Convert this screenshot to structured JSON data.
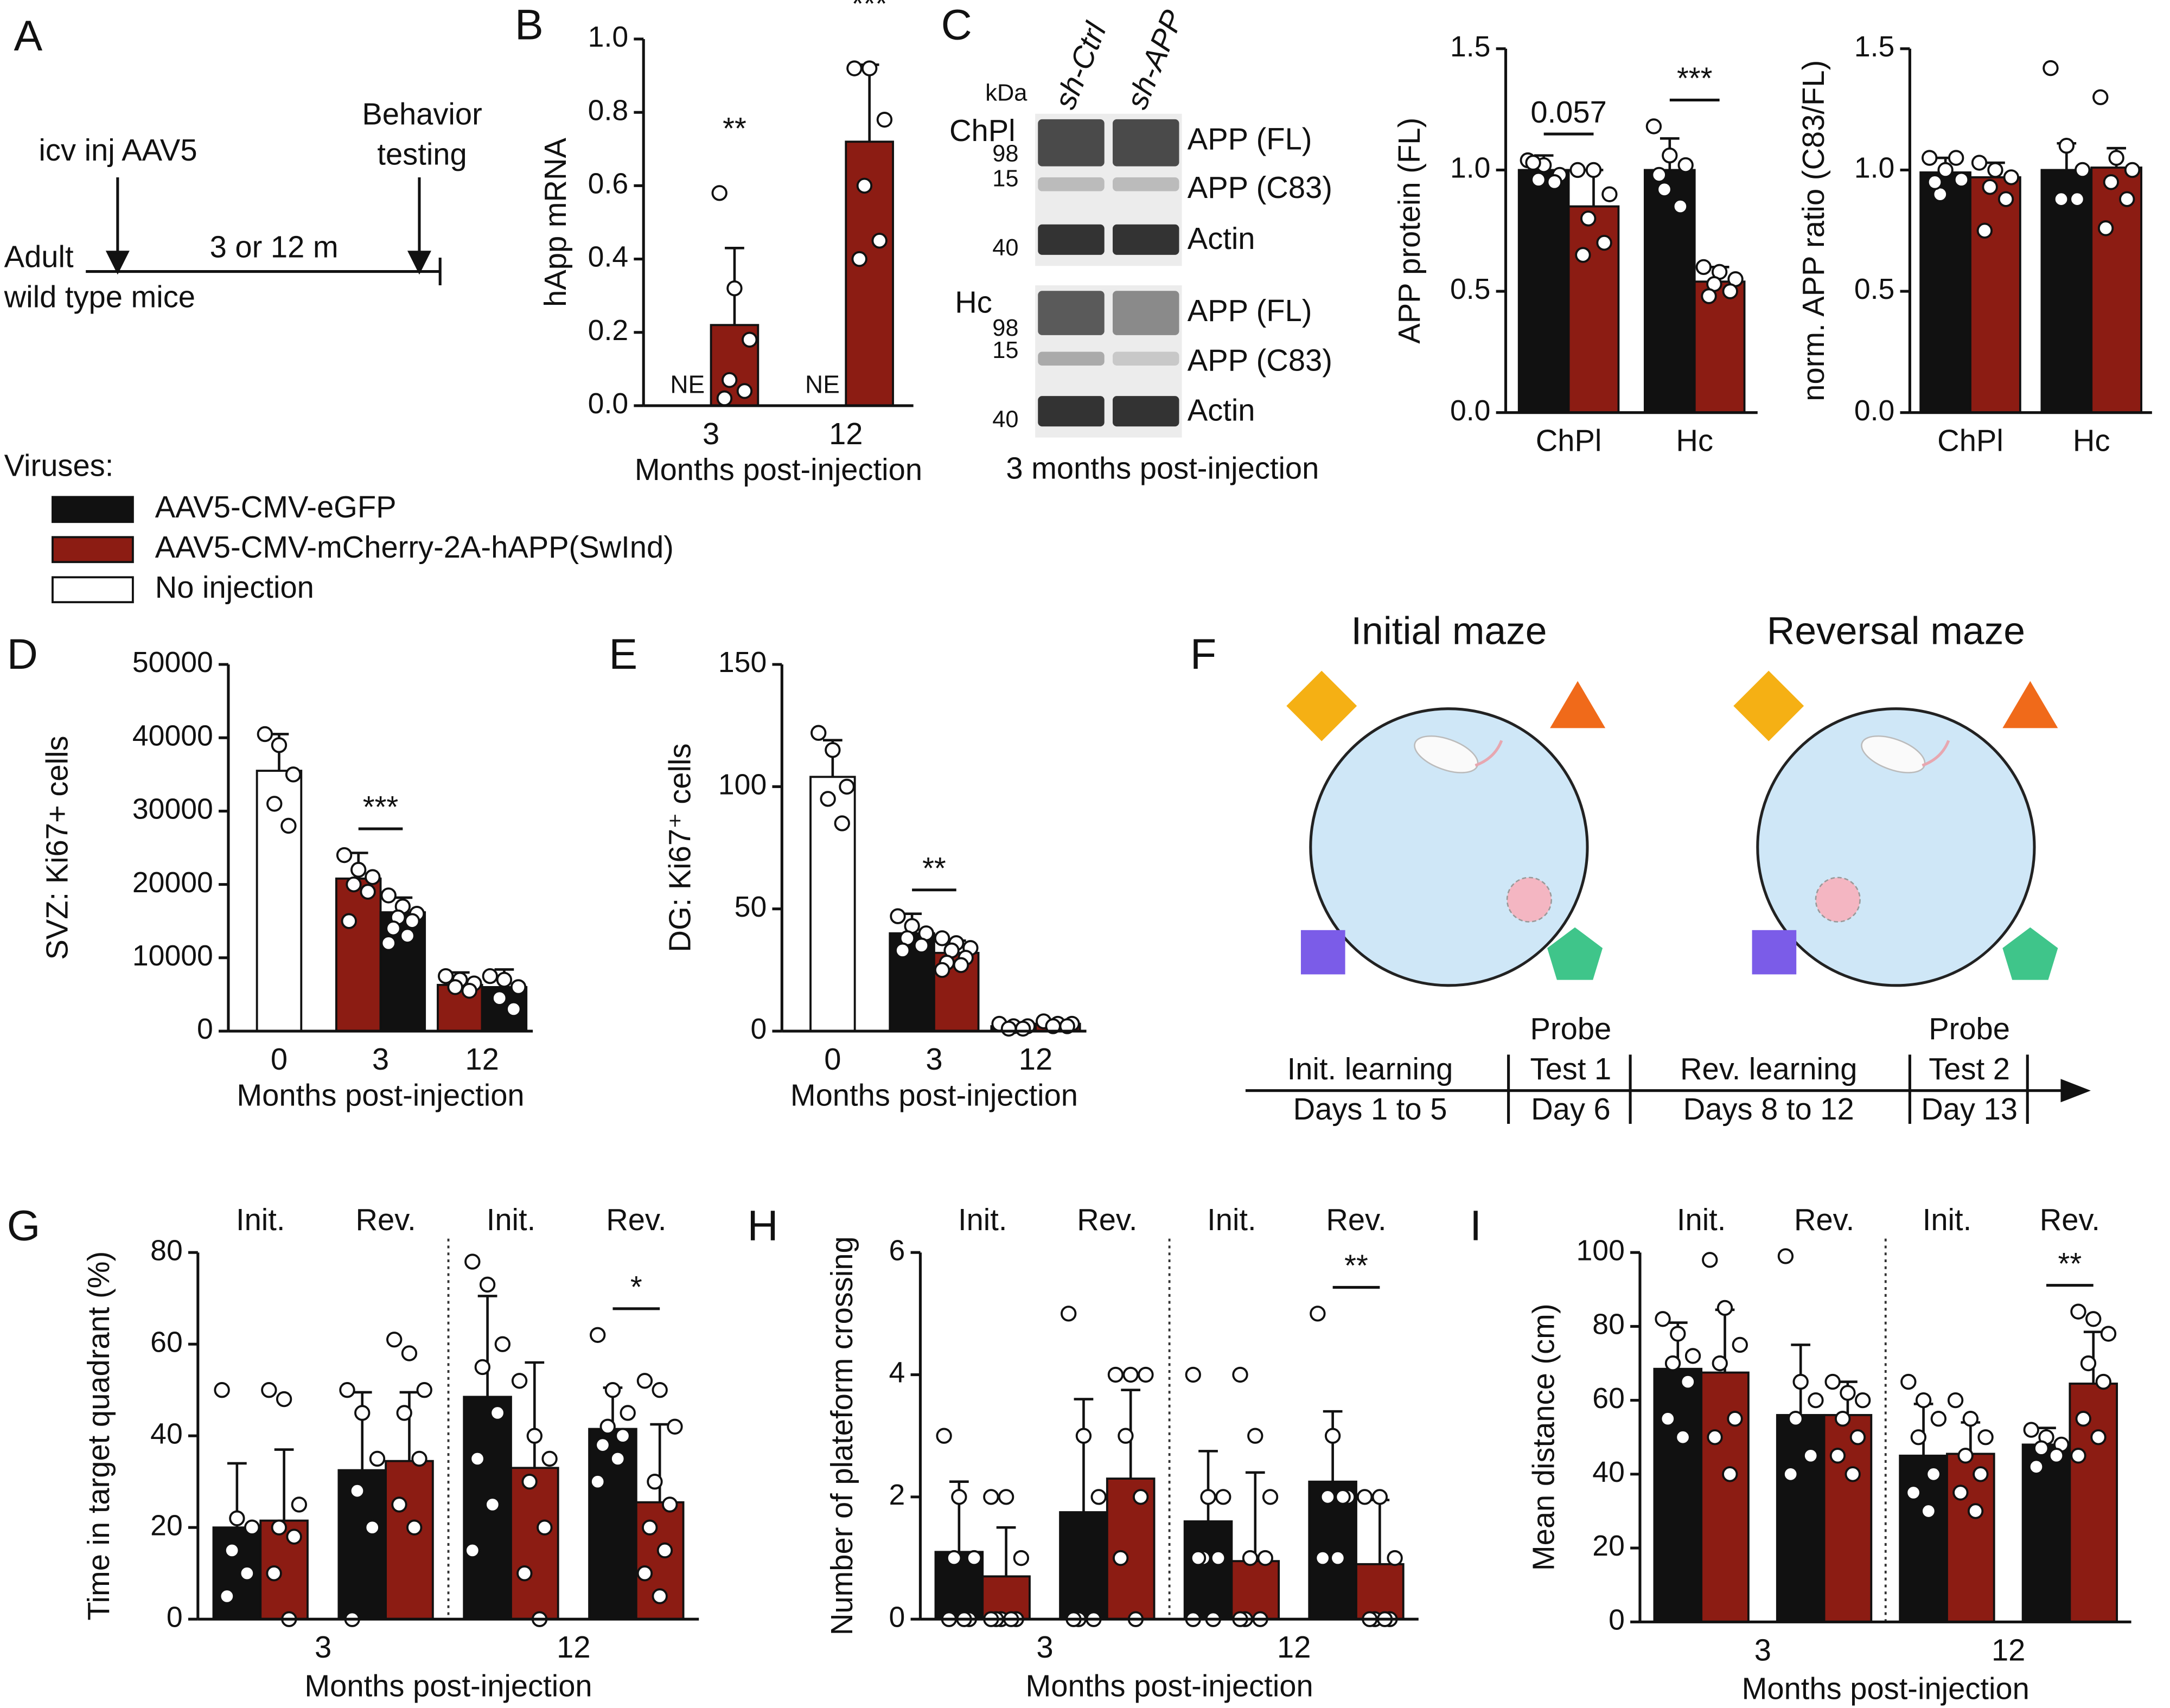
{
  "panel_labels": [
    "A",
    "B",
    "C",
    "D",
    "E",
    "F",
    "G",
    "H",
    "I"
  ],
  "schematic": {
    "injection": "icv inj AAV5",
    "behavior": [
      "Behavior",
      "testing"
    ],
    "interval": "3 or 12 m",
    "subject": [
      "Adult",
      "wild type mice"
    ]
  },
  "legend": {
    "title": "Viruses:",
    "items": [
      {
        "name": "AAV5-CMV-eGFP",
        "color": "#111111"
      },
      {
        "name": "AAV5-CMV-mCherry-2A-hAPP(SwInd)",
        "color": "#8c1c13"
      },
      {
        "name": "No injection",
        "color": "#ffffff"
      }
    ]
  },
  "blot": {
    "kda": "kDa",
    "lanes": [
      "sh-Ctrl",
      "sh-APP"
    ],
    "tissues": [
      "ChPl",
      "Hc"
    ],
    "markers": [
      [
        98,
        15,
        40
      ],
      [
        98,
        15,
        40
      ]
    ],
    "bands": [
      [
        "APP (FL)",
        "APP (C83)",
        "Actin"
      ],
      [
        "APP (FL)",
        "APP (C83)",
        "Actin"
      ]
    ],
    "caption": "3 months post-injection"
  },
  "maze": {
    "titles": [
      "Initial maze",
      "Reversal maze"
    ],
    "timeline": [
      [
        "Init. learning",
        "Days 1 to 5"
      ],
      [
        "Probe",
        "Test 1",
        "Day 6"
      ],
      [
        "Rev. learning",
        "Days 8 to 12"
      ],
      [
        "Probe",
        "Test 2",
        "Day 13"
      ]
    ]
  },
  "chart_data": [
    {
      "type": "bar",
      "ylabel": "hApp mRNA",
      "xlabel": "Months post-injection",
      "categories": [
        "3",
        "12"
      ],
      "ylim": [
        0,
        1
      ],
      "yticks": [
        {
          "value": 0,
          "label": "0.0"
        },
        {
          "value": 0.2,
          "label": "0.2"
        },
        {
          "value": 0.4,
          "label": "0.4"
        },
        {
          "value": 0.6,
          "label": "0.6"
        },
        {
          "value": 0.8,
          "label": "0.8"
        },
        {
          "value": 1,
          "label": "1.0"
        }
      ],
      "series": [
        {
          "color": "#111111",
          "values": [
            null,
            null
          ],
          "missing_label": "NE"
        },
        {
          "color": "#8c1c13",
          "values": [
            0.22,
            0.72
          ],
          "errors": [
            0.21,
            0.21
          ],
          "points": [
            [
              0.58,
              0.32,
              0.18,
              0.07,
              0.04,
              0.02
            ],
            [
              0.92,
              0.92,
              0.78,
              0.6,
              0.45,
              0.4
            ]
          ]
        }
      ],
      "annotations": [
        {
          "text": "**",
          "category": 0,
          "series": 1
        },
        {
          "text": "***",
          "category": 1,
          "series": 1
        }
      ]
    },
    {
      "type": "bar",
      "ylabel": "APP protein (FL)",
      "categories": [
        "ChPl",
        "Hc"
      ],
      "ylim": [
        0,
        1.5
      ],
      "yticks": [
        {
          "value": 0,
          "label": "0.0"
        },
        {
          "value": 0.5,
          "label": "0.5"
        },
        {
          "value": 1,
          "label": "1.0"
        },
        {
          "value": 1.5,
          "label": "1.5"
        }
      ],
      "series": [
        {
          "color": "#111111",
          "values": [
            1.0,
            1.0
          ],
          "errors": [
            0.06,
            0.13
          ],
          "points": [
            [
              1.04,
              1.02,
              0.98,
              0.96,
              0.95,
              1.03
            ],
            [
              1.18,
              1.06,
              1.02,
              0.92,
              0.85,
              0.98
            ]
          ]
        },
        {
          "color": "#8c1c13",
          "values": [
            0.85,
            0.54
          ],
          "errors": [
            0.15,
            0.06
          ],
          "points": [
            [
              1.0,
              1.0,
              0.9,
              0.8,
              0.7,
              0.65
            ],
            [
              0.6,
              0.58,
              0.55,
              0.53,
              0.5,
              0.48
            ]
          ]
        }
      ],
      "annotations": [
        {
          "text": "0.057",
          "category": 0,
          "bracket": true
        },
        {
          "text": "***",
          "category": 1,
          "bracket": true
        }
      ]
    },
    {
      "type": "bar",
      "ylabel": "norm. APP ratio (C83/FL)",
      "categories": [
        "ChPl",
        "Hc"
      ],
      "ylim": [
        0,
        1.5
      ],
      "yticks": [
        {
          "value": 0,
          "label": "0.0"
        },
        {
          "value": 0.5,
          "label": "0.5"
        },
        {
          "value": 1,
          "label": "1.0"
        },
        {
          "value": 1.5,
          "label": "1.5"
        }
      ],
      "series": [
        {
          "color": "#111111",
          "values": [
            0.99,
            1.0
          ],
          "errors": [
            0.06,
            0.11
          ],
          "points": [
            [
              1.05,
              1.0,
              0.96,
              0.9,
              1.05,
              0.95
            ],
            [
              1.42,
              1.1,
              1.0,
              0.88,
              0.88
            ]
          ]
        },
        {
          "color": "#8c1c13",
          "values": [
            0.97,
            1.01
          ],
          "errors": [
            0.06,
            0.08
          ],
          "points": [
            [
              1.03,
              1.0,
              0.97,
              0.93,
              0.88,
              0.75
            ],
            [
              1.3,
              1.05,
              1.0,
              0.95,
              0.88,
              0.76
            ]
          ]
        }
      ]
    },
    {
      "type": "bar",
      "ylabel": "SVZ: Ki67+ cells",
      "xlabel": "Months post-injection",
      "categories": [
        "0",
        "3",
        "12"
      ],
      "center_single": true,
      "ylim": [
        0,
        50000
      ],
      "yticks": [
        0,
        10000,
        20000,
        30000,
        40000,
        50000
      ],
      "series": [
        {
          "color": "#ffffff",
          "values": [
            35500,
            null,
            null
          ],
          "errors": [
            5000,
            null,
            null
          ],
          "points": [
            [
              40500,
              39000,
              35000,
              31000,
              28000
            ],
            [],
            []
          ]
        },
        {
          "color": "#8c1c13",
          "values": [
            null,
            20800,
            6300
          ],
          "errors": [
            null,
            3500,
            1700
          ],
          "points": [
            [],
            [
              24000,
              22000,
              21000,
              20000,
              19000,
              15000
            ],
            [
              7500,
              7000,
              6500,
              6000,
              5500
            ]
          ]
        },
        {
          "color": "#111111",
          "values": [
            null,
            16200,
            6000
          ],
          "errors": [
            null,
            2000,
            2400
          ],
          "points": [
            [],
            [
              18500,
              17000,
              16000,
              15500,
              15000,
              14000,
              13000,
              12000
            ],
            [
              7500,
              7000,
              6000,
              4500,
              3000
            ]
          ]
        }
      ],
      "annotations": [
        {
          "text": "***",
          "category": 1,
          "bracket": true
        }
      ]
    },
    {
      "type": "bar",
      "ylabel": "DG: Ki67⁺ cells",
      "xlabel": "Months post-injection",
      "categories": [
        "0",
        "3",
        "12"
      ],
      "center_single": true,
      "ylim": [
        0,
        150
      ],
      "yticks": [
        0,
        50,
        100,
        150
      ],
      "series": [
        {
          "color": "#ffffff",
          "values": [
            104,
            null,
            null
          ],
          "errors": [
            15,
            null,
            null
          ],
          "points": [
            [
              122,
              115,
              100,
              95,
              85
            ],
            [],
            []
          ]
        },
        {
          "color": "#111111",
          "values": [
            null,
            40,
            2
          ],
          "errors": [
            null,
            8,
            1
          ],
          "points": [
            [],
            [
              47,
              43,
              40,
              38,
              35,
              33
            ],
            [
              3,
              2,
              2,
              1,
              1
            ]
          ]
        },
        {
          "color": "#8c1c13",
          "values": [
            null,
            32,
            3
          ],
          "errors": [
            null,
            5,
            1
          ],
          "points": [
            [],
            [
              38,
              36,
              34,
              33,
              30,
              28,
              27,
              25
            ],
            [
              4,
              3,
              3,
              2,
              2
            ]
          ]
        }
      ],
      "annotations": [
        {
          "text": "**",
          "category": 1,
          "bracket": true
        }
      ]
    },
    {
      "type": "bar",
      "ylabel": "Time in target quadrant (%)",
      "xlabel": "Months post-injection",
      "categories": [
        "Init.",
        "Rev.",
        "Init.",
        "Rev."
      ],
      "category_labels": "top",
      "groups": [
        "3",
        "12"
      ],
      "divider": true,
      "ylim": [
        0,
        80
      ],
      "yticks": [
        0,
        20,
        40,
        60,
        80
      ],
      "series": [
        {
          "color": "#111111",
          "values": [
            20,
            32.5,
            48.5,
            41.5
          ],
          "errors": [
            14,
            17,
            22,
            9
          ],
          "points": [
            [
              50,
              22,
              20,
              15,
              10,
              5
            ],
            [
              50,
              45,
              35,
              28,
              20,
              0
            ],
            [
              78,
              73,
              60,
              55,
              45,
              35,
              25,
              15
            ],
            [
              62,
              50,
              45,
              42,
              40,
              38,
              35,
              30
            ]
          ]
        },
        {
          "color": "#8c1c13",
          "values": [
            21.5,
            34.5,
            33,
            25.5
          ],
          "errors": [
            15.5,
            15,
            23,
            17
          ],
          "points": [
            [
              50,
              48,
              25,
              20,
              18,
              10,
              0
            ],
            [
              61,
              58,
              50,
              45,
              35,
              25,
              20
            ],
            [
              52,
              40,
              35,
              30,
              20,
              10,
              0
            ],
            [
              52,
              50,
              42,
              30,
              25,
              20,
              15,
              10,
              5
            ]
          ]
        }
      ],
      "annotations": [
        {
          "text": "*",
          "category": 3,
          "bracket": true
        }
      ]
    },
    {
      "type": "bar",
      "ylabel": "Number of plateform crossing",
      "xlabel": "Months post-injection",
      "categories": [
        "Init.",
        "Rev.",
        "Init.",
        "Rev."
      ],
      "category_labels": "top",
      "groups": [
        "3",
        "12"
      ],
      "divider": true,
      "ylim": [
        0,
        6
      ],
      "yticks": [
        0,
        2,
        4,
        6
      ],
      "series": [
        {
          "color": "#111111",
          "values": [
            1.1,
            1.75,
            1.6,
            2.25
          ],
          "errors": [
            1.15,
            1.85,
            1.15,
            1.15
          ],
          "points": [
            [
              3,
              2,
              1,
              1,
              0,
              0,
              0
            ],
            [
              5,
              3,
              2,
              0,
              0,
              0
            ],
            [
              4,
              2,
              2,
              1,
              1,
              1,
              0,
              0
            ],
            [
              5,
              3,
              2,
              2,
              2,
              1,
              1
            ]
          ]
        },
        {
          "color": "#8c1c13",
          "values": [
            0.7,
            2.3,
            0.95,
            0.9
          ],
          "errors": [
            0.8,
            1.45,
            1.45,
            1.05
          ],
          "points": [
            [
              2,
              2,
              1,
              0,
              0,
              0,
              0,
              0
            ],
            [
              4,
              4,
              4,
              3,
              2,
              1,
              0
            ],
            [
              4,
              3,
              2,
              1,
              1,
              0,
              0,
              0
            ],
            [
              2,
              2,
              1,
              0,
              0,
              0,
              0
            ]
          ]
        }
      ],
      "annotations": [
        {
          "text": "**",
          "category": 3,
          "bracket": true
        }
      ]
    },
    {
      "type": "bar",
      "ylabel": "Mean distance (cm)",
      "xlabel": "Months post-injection",
      "categories": [
        "Init.",
        "Rev.",
        "Init.",
        "Rev."
      ],
      "category_labels": "top",
      "groups": [
        "3",
        "12"
      ],
      "divider": true,
      "ylim": [
        0,
        100
      ],
      "yticks": [
        0,
        20,
        40,
        60,
        80,
        100
      ],
      "series": [
        {
          "color": "#111111",
          "values": [
            68.5,
            56,
            45,
            48
          ],
          "errors": [
            12.5,
            19,
            14,
            4.5
          ],
          "points": [
            [
              82,
              78,
              72,
              70,
              65,
              55,
              50
            ],
            [
              99,
              65,
              60,
              55,
              45,
              40
            ],
            [
              65,
              60,
              55,
              50,
              40,
              35,
              30
            ],
            [
              52,
              50,
              48,
              47,
              45,
              42
            ]
          ]
        },
        {
          "color": "#8c1c13",
          "values": [
            67.5,
            56,
            45.5,
            64.5
          ],
          "errors": [
            17,
            9,
            8.5,
            14
          ],
          "points": [
            [
              98,
              85,
              75,
              70,
              55,
              50,
              40
            ],
            [
              65,
              62,
              60,
              55,
              50,
              45,
              40
            ],
            [
              60,
              55,
              50,
              45,
              40,
              35,
              30
            ],
            [
              84,
              82,
              78,
              70,
              65,
              55,
              50,
              45
            ]
          ]
        }
      ],
      "annotations": [
        {
          "text": "**",
          "category": 3,
          "bracket": true
        }
      ]
    }
  ]
}
